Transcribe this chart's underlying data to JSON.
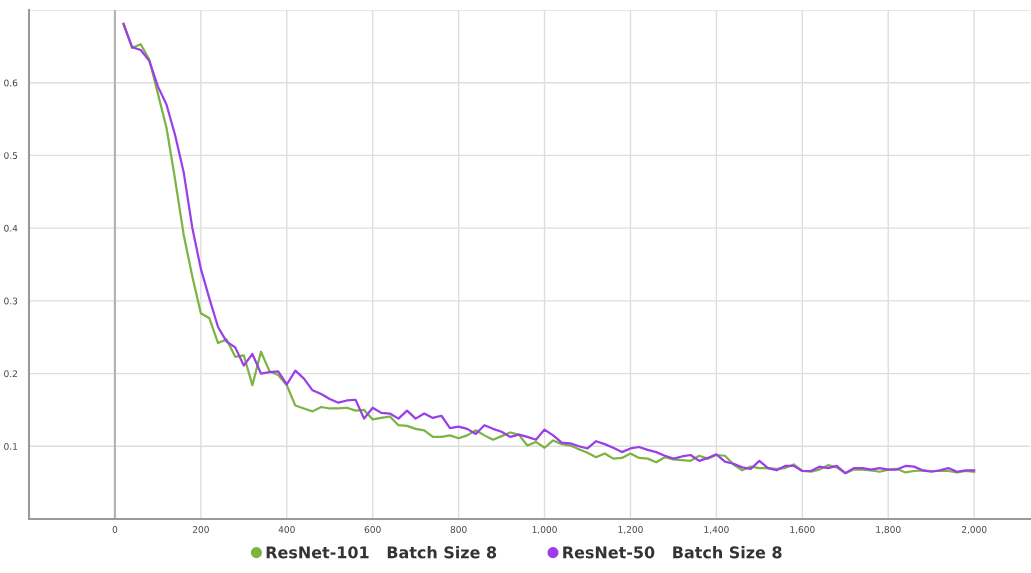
{
  "chart_data": {
    "type": "line",
    "x": [
      20,
      40,
      60,
      80,
      100,
      120,
      140,
      160,
      180,
      200,
      220,
      240,
      260,
      280,
      300,
      320,
      340,
      360,
      380,
      400,
      420,
      440,
      460,
      480,
      500,
      520,
      540,
      560,
      580,
      600,
      620,
      640,
      660,
      680,
      700,
      720,
      740,
      760,
      780,
      800,
      820,
      840,
      860,
      880,
      900,
      920,
      940,
      960,
      980,
      1000,
      1020,
      1040,
      1060,
      1080,
      1100,
      1120,
      1140,
      1160,
      1180,
      1200,
      1220,
      1240,
      1260,
      1280,
      1300,
      1320,
      1340,
      1360,
      1380,
      1400,
      1420,
      1440,
      1460,
      1480,
      1500,
      1520,
      1540,
      1560,
      1580,
      1600,
      1620,
      1640,
      1660,
      1680,
      1700,
      1720,
      1740,
      1760,
      1780,
      1800,
      1820,
      1840,
      1860,
      1880,
      1900,
      1920,
      1940,
      1960,
      1980,
      2000
    ],
    "series": [
      {
        "name": "ResNet-101   Batch Size 8",
        "color": "#7cb342",
        "values": [
          0.681,
          0.648,
          0.653,
          0.632,
          0.585,
          0.538,
          0.467,
          0.391,
          0.334,
          0.283,
          0.276,
          0.242,
          0.247,
          0.223,
          0.225,
          0.184,
          0.23,
          0.203,
          0.198,
          0.184,
          0.156,
          0.152,
          0.148,
          0.154,
          0.152,
          0.152,
          0.153,
          0.149,
          0.15,
          0.137,
          0.139,
          0.141,
          0.129,
          0.128,
          0.124,
          0.122,
          0.113,
          0.113,
          0.115,
          0.111,
          0.115,
          0.122,
          0.115,
          0.109,
          0.114,
          0.119,
          0.116,
          0.101,
          0.106,
          0.098,
          0.108,
          0.103,
          0.101,
          0.096,
          0.091,
          0.085,
          0.09,
          0.083,
          0.084,
          0.09,
          0.084,
          0.083,
          0.078,
          0.085,
          0.082,
          0.081,
          0.08,
          0.087,
          0.083,
          0.088,
          0.087,
          0.075,
          0.067,
          0.072,
          0.07,
          0.07,
          0.069,
          0.07,
          0.075,
          0.066,
          0.065,
          0.068,
          0.074,
          0.071,
          0.063,
          0.068,
          0.068,
          0.067,
          0.065,
          0.068,
          0.069,
          0.064,
          0.066,
          0.067,
          0.066,
          0.066,
          0.066,
          0.064,
          0.066,
          0.065
        ]
      },
      {
        "name": "ResNet-50   Batch Size 8",
        "color": "#9b3de8",
        "values": [
          0.681,
          0.649,
          0.645,
          0.63,
          0.595,
          0.57,
          0.528,
          0.477,
          0.401,
          0.344,
          0.303,
          0.264,
          0.244,
          0.236,
          0.211,
          0.227,
          0.2,
          0.202,
          0.203,
          0.185,
          0.204,
          0.193,
          0.177,
          0.172,
          0.165,
          0.16,
          0.163,
          0.164,
          0.138,
          0.153,
          0.146,
          0.145,
          0.138,
          0.149,
          0.138,
          0.145,
          0.139,
          0.142,
          0.125,
          0.127,
          0.124,
          0.117,
          0.129,
          0.124,
          0.12,
          0.113,
          0.116,
          0.113,
          0.109,
          0.123,
          0.115,
          0.105,
          0.104,
          0.1,
          0.097,
          0.107,
          0.103,
          0.098,
          0.092,
          0.097,
          0.099,
          0.095,
          0.092,
          0.087,
          0.083,
          0.086,
          0.088,
          0.08,
          0.084,
          0.089,
          0.079,
          0.076,
          0.071,
          0.069,
          0.08,
          0.07,
          0.067,
          0.073,
          0.073,
          0.066,
          0.066,
          0.072,
          0.07,
          0.073,
          0.063,
          0.07,
          0.07,
          0.068,
          0.07,
          0.068,
          0.068,
          0.073,
          0.072,
          0.067,
          0.065,
          0.067,
          0.07,
          0.065,
          0.067,
          0.067
        ]
      }
    ],
    "xlim": [
      -200,
      2130
    ],
    "xticks": [
      0,
      200,
      400,
      600,
      800,
      {
        "value": 1000,
        "label": "1,000"
      },
      {
        "value": 1200,
        "label": "1,200"
      },
      {
        "value": 1400,
        "label": "1,400"
      },
      {
        "value": 1600,
        "label": "1,600"
      },
      {
        "value": 1800,
        "label": "1,800"
      },
      {
        "value": 2000,
        "label": "2,000"
      }
    ],
    "ylim": [
      0,
      0.7
    ],
    "yticks": [
      0.1,
      0.2,
      0.3,
      0.4,
      0.5,
      0.6,
      {
        "value": 0.7,
        "label": null
      }
    ],
    "ref_lines": [
      {
        "axis": "x",
        "value": 0,
        "color": "#b4b4b4"
      }
    ],
    "grid": true,
    "legend": "bottom",
    "line_style": "solid"
  }
}
